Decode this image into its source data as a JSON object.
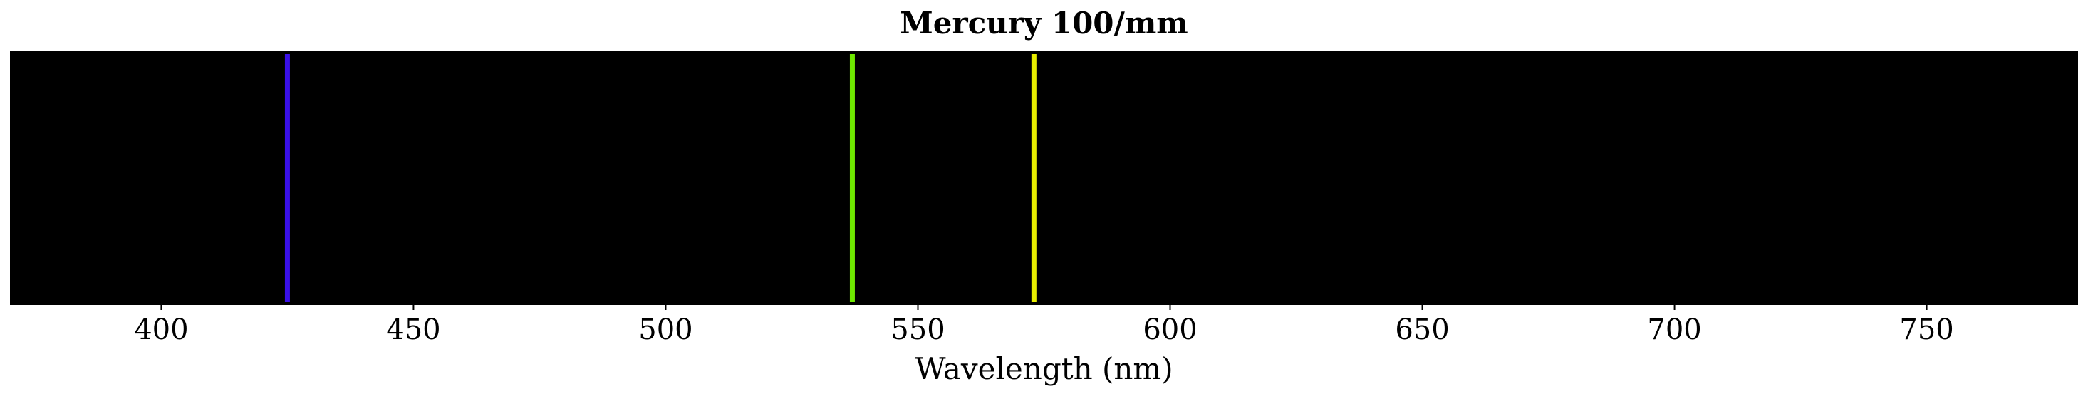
{
  "chart_data": {
    "type": "spectrum",
    "title": "Mercury 100/mm",
    "xlabel": "Wavelength (nm)",
    "xlim": [
      370,
      780
    ],
    "x_ticks": [
      400,
      450,
      500,
      550,
      600,
      650,
      700,
      750
    ],
    "background_color": "#000000",
    "grid": false,
    "lines": [
      {
        "wavelength": 425,
        "color": "#3a10e8"
      },
      {
        "wavelength": 537,
        "color": "#6ee800"
      },
      {
        "wavelength": 573,
        "color": "#e8ee00"
      }
    ]
  }
}
